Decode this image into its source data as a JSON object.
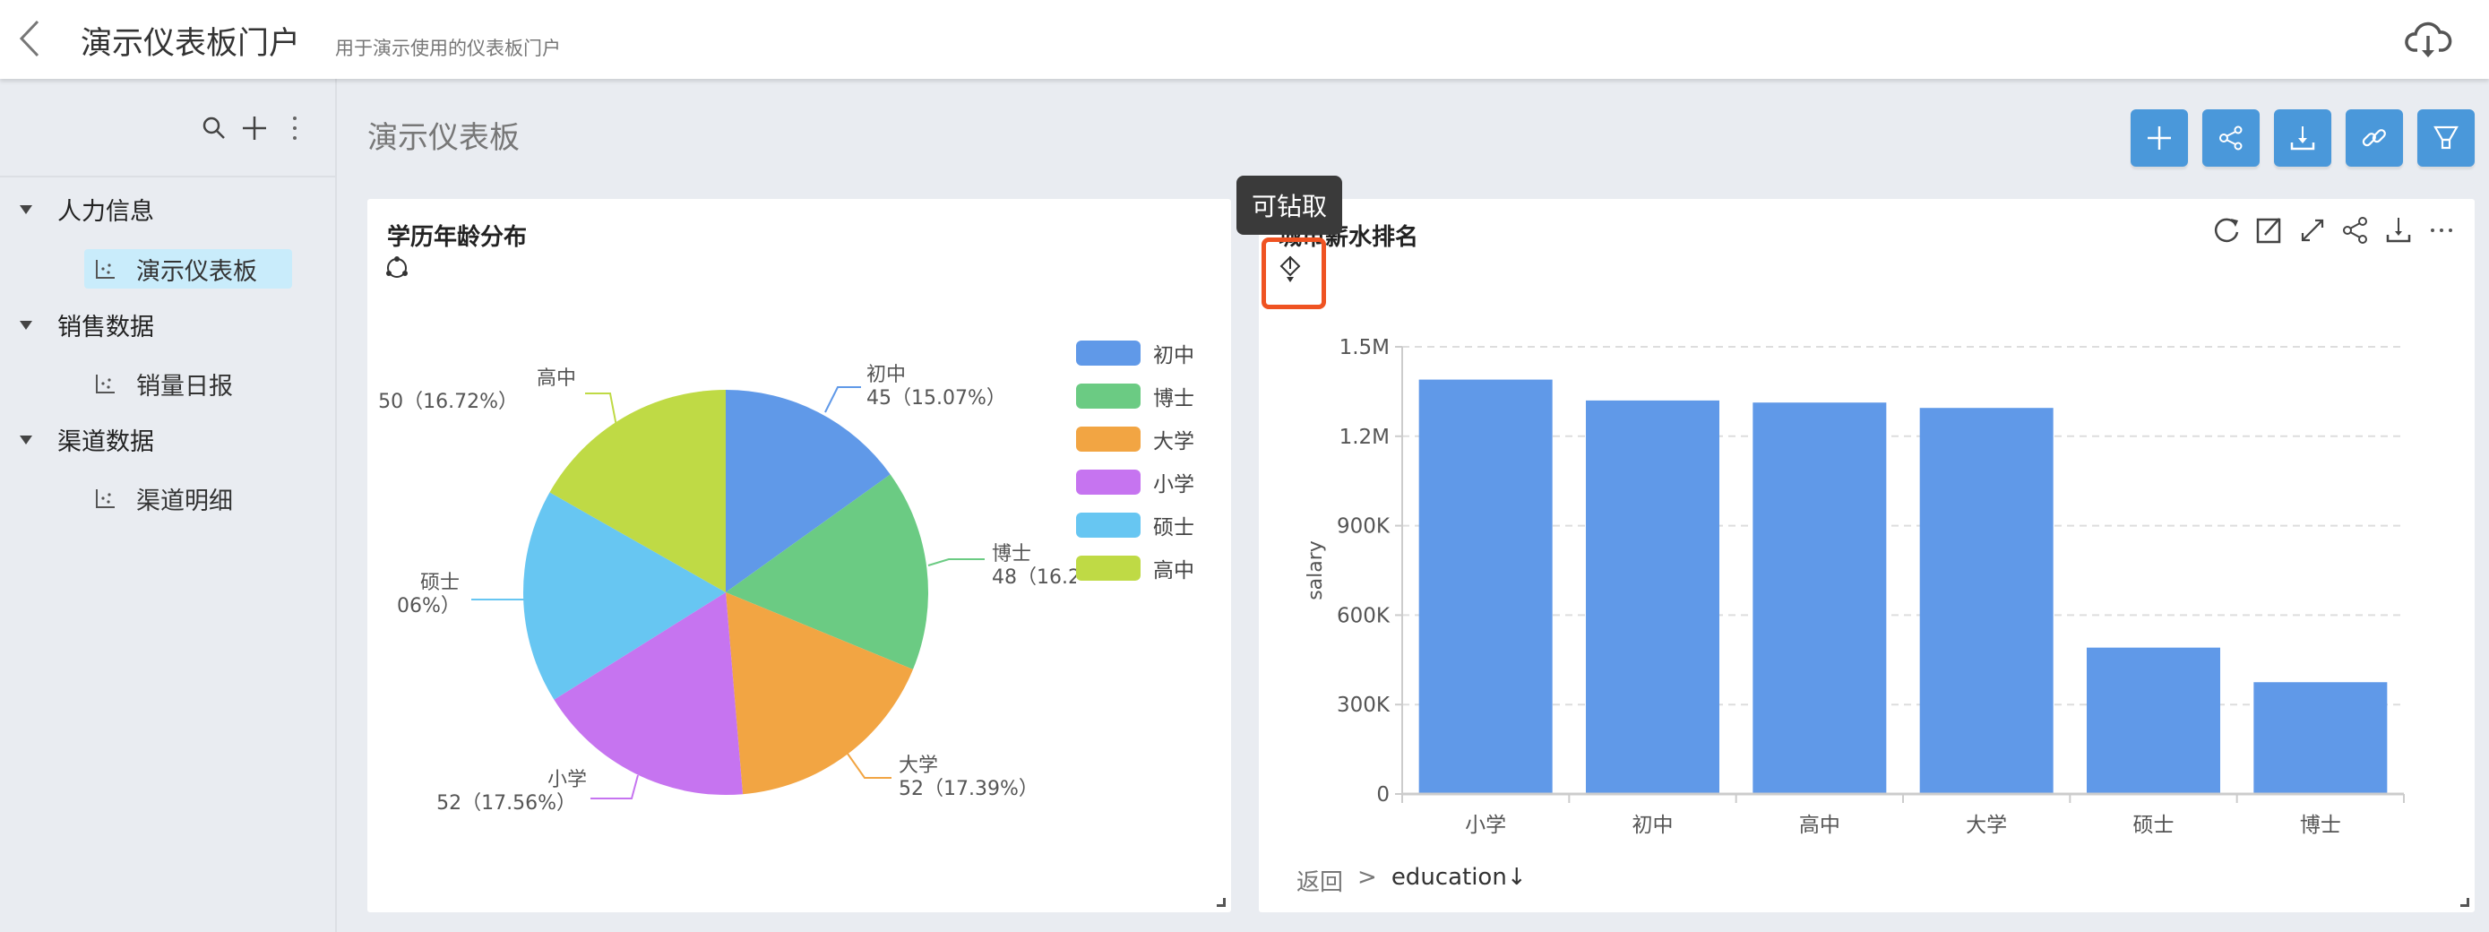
{
  "header": {
    "title": "演示仪表板门户",
    "subtitle": "用于演示使用的仪表板门户",
    "icons": [
      "back-chevron-icon",
      "cloud-download-icon"
    ]
  },
  "sidebar": {
    "tools": [
      "search-icon",
      "plus-icon",
      "more-vertical-icon"
    ],
    "groups": [
      {
        "label": "人力信息",
        "items": [
          {
            "label": "演示仪表板",
            "active": true
          }
        ]
      },
      {
        "label": "销售数据",
        "items": [
          {
            "label": "销量日报",
            "active": false
          }
        ]
      },
      {
        "label": "渠道数据",
        "items": [
          {
            "label": "渠道明细",
            "active": false
          }
        ]
      }
    ]
  },
  "main": {
    "title": "演示仪表板",
    "toolbar": [
      "plus-icon",
      "share-icon",
      "download-icon",
      "link-icon",
      "filter-icon"
    ],
    "accent": "#4a98da"
  },
  "tooltip": "可钻取",
  "chart_data": [
    {
      "type": "pie",
      "title": "学历年龄分布",
      "slices": [
        {
          "name": "初中",
          "value": 45,
          "label": "45（15.07%）",
          "color": "#6099e8"
        },
        {
          "name": "博士",
          "value": 48,
          "label": "48（16.2",
          "color": "#6bcb83"
        },
        {
          "name": "大学",
          "value": 52,
          "label": "52（17.39%）",
          "color": "#f2a543"
        },
        {
          "name": "小学",
          "value": 52,
          "label": "52（17.56%）",
          "color": "#c674f0"
        },
        {
          "name": "硕士",
          "value": 51,
          "label": "06%）",
          "color": "#67c6f2"
        },
        {
          "name": "高中",
          "value": 50,
          "label": "50（16.72%）",
          "color": "#bfda45"
        }
      ],
      "legend": [
        "初中",
        "博士",
        "大学",
        "小学",
        "硕士",
        "高中"
      ],
      "legend_position": "right"
    },
    {
      "type": "bar",
      "title": "城市薪水排名",
      "ylabel": "salary",
      "categories": [
        "小学",
        "初中",
        "高中",
        "大学",
        "硕士",
        "博士"
      ],
      "values": [
        1390000,
        1320000,
        1313000,
        1295000,
        491000,
        375000
      ],
      "ylim": [
        0,
        1500000
      ],
      "yticks": [
        "0",
        "300K",
        "600K",
        "900K",
        "1.2M",
        "1.5M"
      ],
      "grid": true,
      "color": "#6099e8",
      "breadcrumb": {
        "back": "返回",
        "sep": ">",
        "field": "education↓"
      },
      "icons": [
        "refresh-icon",
        "edit-icon",
        "expand-icon",
        "share-icon",
        "download-icon",
        "more-icon"
      ]
    }
  ]
}
